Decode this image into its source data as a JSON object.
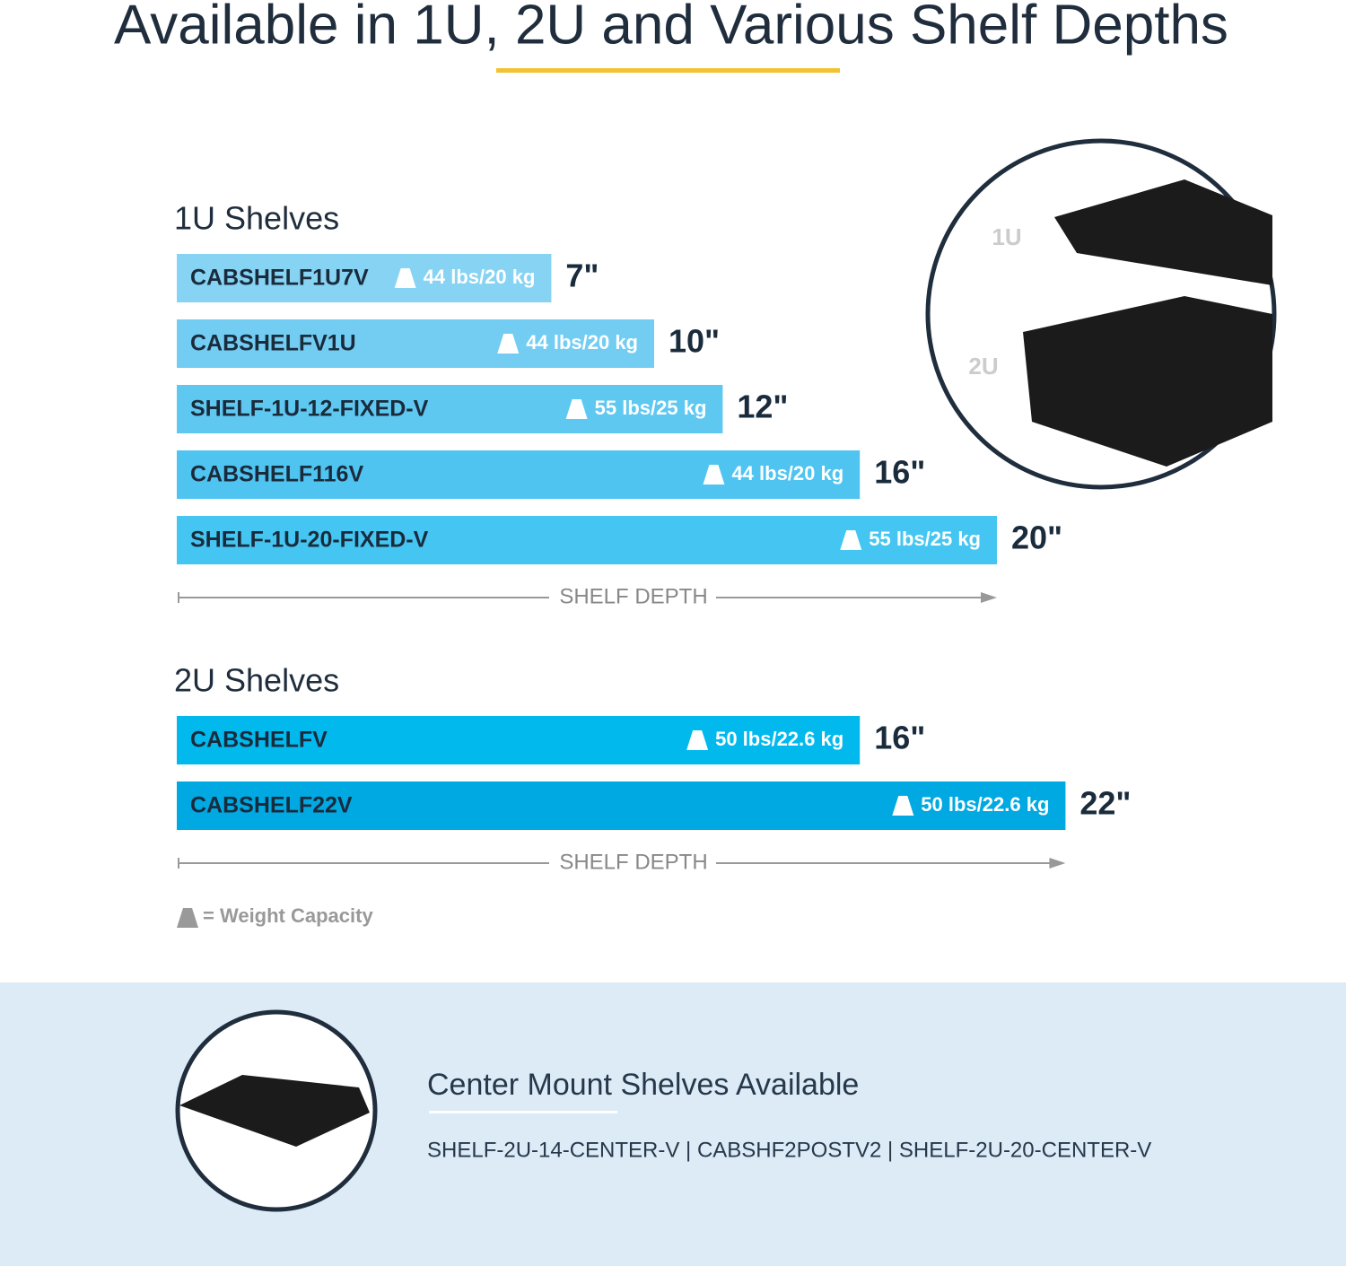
{
  "header": {
    "title": "Available in 1U, 2U and Various Shelf Depths"
  },
  "chart_data": [
    {
      "type": "bar",
      "title": "1U  Shelves",
      "categories": [
        "CABSHELF1U7V",
        "CABSHELFV1U",
        "SHELF-1U-12-FIXED-V",
        "CABSHELF116V",
        "SHELF-1U-20-FIXED-V"
      ],
      "values": [
        7,
        10,
        12,
        16,
        20
      ],
      "value_labels": [
        "7\"",
        "10\"",
        "12\"",
        "16\"",
        "20\""
      ],
      "weight_labels": [
        "44 lbs/20 kg",
        "44 lbs/20 kg",
        "55 lbs/25 kg",
        "44 lbs/20 kg",
        "55 lbs/25 kg"
      ],
      "colors": [
        "#86d3f3",
        "#73cdf2",
        "#5fc8f1",
        "#4fc4f0",
        "#45c6f2"
      ],
      "axis_label": "SHELF DEPTH"
    },
    {
      "type": "bar",
      "title": "2U  Shelves",
      "categories": [
        "CABSHELFV",
        "CABSHELF22V"
      ],
      "values": [
        16,
        22
      ],
      "value_labels": [
        "16\"",
        "22\""
      ],
      "weight_labels": [
        "50 lbs/22.6 kg",
        "50 lbs/22.6 kg"
      ],
      "colors": [
        "#02b9ee",
        "#00a9e2"
      ],
      "axis_label": "SHELF DEPTH"
    }
  ],
  "image_labels": [
    "1U",
    "2U"
  ],
  "legend": {
    "text": "= Weight Capacity"
  },
  "footer": {
    "title": "Center Mount Shelves Available",
    "models": "SHELF-2U-14-CENTER-V | CABSHF2POSTV2 | SHELF-2U-20-CENTER-V"
  }
}
